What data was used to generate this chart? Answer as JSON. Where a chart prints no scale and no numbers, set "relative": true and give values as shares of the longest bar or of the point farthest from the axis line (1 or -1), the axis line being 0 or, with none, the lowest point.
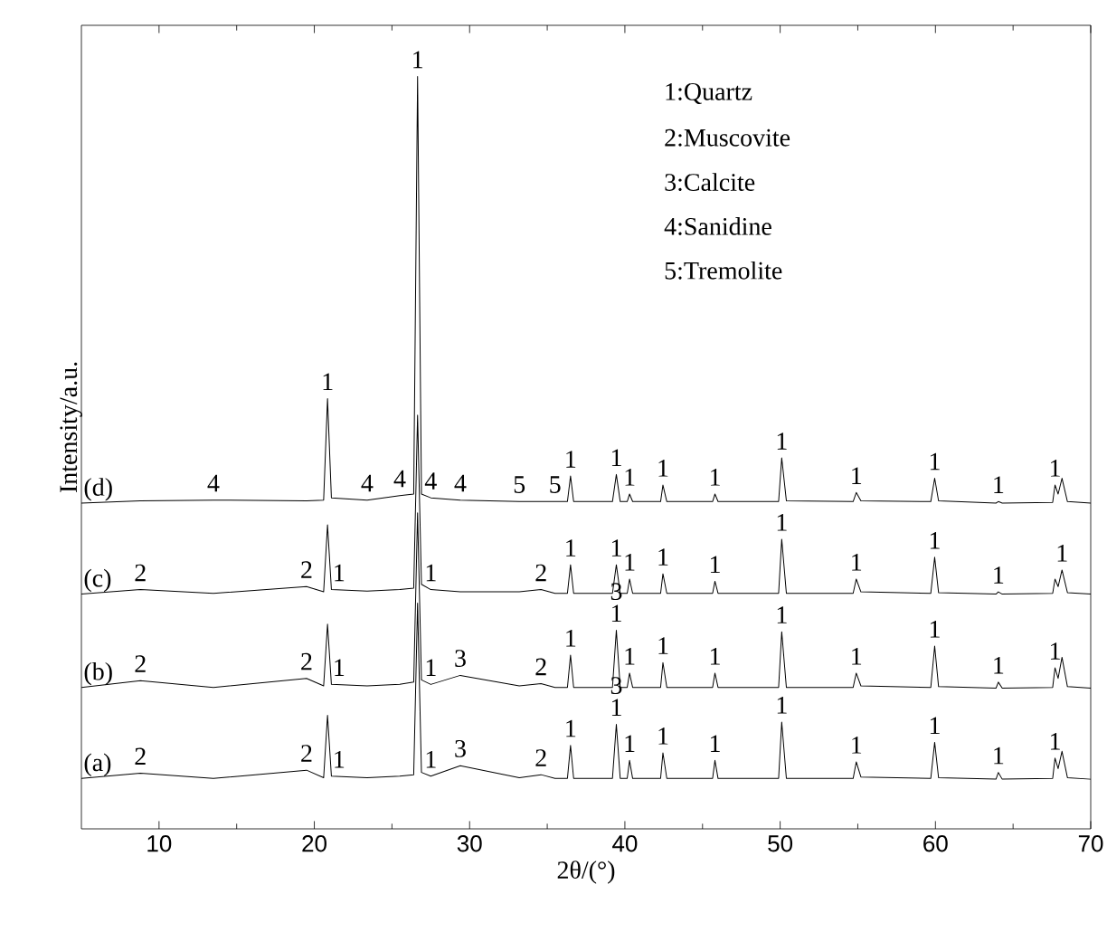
{
  "chart_data": {
    "type": "line",
    "relative": true,
    "xlabel": "2θ/(°)",
    "ylabel": "Intensity/a.u.",
    "xlim": [
      5,
      70
    ],
    "xticks": [
      10,
      20,
      30,
      40,
      50,
      60,
      70
    ],
    "tick_labels": "x",
    "marker": "none",
    "line_style": "solid",
    "x": [
      5,
      8.8,
      13.5,
      19.5,
      20.6,
      20.85,
      21.1,
      23.4,
      25.5,
      26.4,
      26.65,
      26.9,
      27.5,
      29.4,
      33.2,
      34.6,
      35.5,
      36.3,
      36.5,
      36.7,
      39.2,
      39.45,
      39.7,
      40.15,
      40.3,
      40.5,
      42.3,
      42.45,
      42.7,
      45.65,
      45.8,
      46.0,
      49.9,
      50.1,
      50.4,
      54.7,
      54.9,
      55.2,
      59.7,
      59.95,
      60.2,
      63.9,
      64.05,
      64.3,
      67.55,
      67.7,
      67.9,
      68.15,
      68.5,
      70
    ],
    "series": [
      {
        "name": "(a)",
        "color": "#000000",
        "values": [
          0.067,
          0.074,
          0.067,
          0.078,
          0.068,
          0.151,
          0.07,
          0.068,
          0.07,
          0.072,
          0.3,
          0.075,
          0.07,
          0.084,
          0.068,
          0.072,
          0.067,
          0.067,
          0.111,
          0.067,
          0.067,
          0.139,
          0.067,
          0.067,
          0.091,
          0.067,
          0.067,
          0.101,
          0.067,
          0.067,
          0.091,
          0.067,
          0.067,
          0.142,
          0.067,
          0.067,
          0.089,
          0.069,
          0.067,
          0.115,
          0.068,
          0.066,
          0.075,
          0.066,
          0.067,
          0.094,
          0.08,
          0.103,
          0.068,
          0.066
        ]
      },
      {
        "name": "(b)",
        "color": "#000000",
        "values": [
          0.188,
          0.197,
          0.188,
          0.2,
          0.19,
          0.272,
          0.192,
          0.19,
          0.192,
          0.195,
          0.42,
          0.198,
          0.192,
          0.204,
          0.19,
          0.193,
          0.188,
          0.188,
          0.231,
          0.188,
          0.188,
          0.264,
          0.188,
          0.188,
          0.207,
          0.188,
          0.188,
          0.221,
          0.188,
          0.188,
          0.207,
          0.188,
          0.188,
          0.262,
          0.188,
          0.188,
          0.207,
          0.19,
          0.188,
          0.243,
          0.189,
          0.187,
          0.195,
          0.187,
          0.188,
          0.214,
          0.2,
          0.228,
          0.189,
          0.187
        ]
      },
      {
        "name": "(c)",
        "color": "#000000",
        "values": [
          0.312,
          0.318,
          0.313,
          0.322,
          0.315,
          0.404,
          0.318,
          0.316,
          0.318,
          0.32,
          0.55,
          0.325,
          0.318,
          0.315,
          0.315,
          0.318,
          0.313,
          0.313,
          0.351,
          0.313,
          0.313,
          0.351,
          0.313,
          0.313,
          0.332,
          0.313,
          0.313,
          0.339,
          0.313,
          0.313,
          0.329,
          0.313,
          0.313,
          0.385,
          0.313,
          0.313,
          0.332,
          0.315,
          0.313,
          0.361,
          0.314,
          0.312,
          0.315,
          0.312,
          0.313,
          0.332,
          0.322,
          0.344,
          0.314,
          0.312
        ]
      },
      {
        "name": "(d)",
        "color": "#000000",
        "values": [
          0.433,
          0.436,
          0.437,
          0.436,
          0.437,
          0.572,
          0.44,
          0.437,
          0.443,
          0.445,
          1.0,
          0.445,
          0.44,
          0.437,
          0.435,
          0.435,
          0.435,
          0.435,
          0.469,
          0.435,
          0.435,
          0.471,
          0.435,
          0.435,
          0.445,
          0.435,
          0.435,
          0.457,
          0.435,
          0.435,
          0.445,
          0.435,
          0.435,
          0.493,
          0.436,
          0.435,
          0.447,
          0.436,
          0.435,
          0.466,
          0.436,
          0.433,
          0.435,
          0.433,
          0.434,
          0.457,
          0.445,
          0.466,
          0.435,
          0.433
        ]
      }
    ],
    "annotations": [
      "1:Quartz",
      "2:Muscovite",
      "3:Calcite",
      "4:Sanidine",
      "5:Tremolite",
      {
        "text": "4",
        "x": 13.5,
        "y": 0.437
      },
      {
        "text": "1",
        "x": 20.85,
        "y": 0.572
      },
      {
        "text": "4",
        "x": 23.4,
        "y": 0.437
      },
      {
        "text": "4",
        "x": 25.5,
        "y": 0.443
      },
      {
        "text": "1",
        "x": 26.65,
        "y": 1.0
      },
      {
        "text": "4",
        "x": 27.5,
        "y": 0.44
      },
      {
        "text": "4",
        "x": 29.4,
        "y": 0.437
      },
      {
        "text": "5",
        "x": 33.2,
        "y": 0.435
      },
      {
        "text": "5",
        "x": 35.5,
        "y": 0.435
      },
      {
        "text": "1",
        "x": 36.5,
        "y": 0.469
      },
      {
        "text": "1",
        "x": 39.45,
        "y": 0.471
      },
      {
        "text": "1",
        "x": 40.3,
        "y": 0.445
      },
      {
        "text": "1",
        "x": 42.45,
        "y": 0.457
      },
      {
        "text": "1",
        "x": 45.8,
        "y": 0.445
      },
      {
        "text": "1",
        "x": 50.1,
        "y": 0.493
      },
      {
        "text": "1",
        "x": 54.9,
        "y": 0.447
      },
      {
        "text": "1",
        "x": 59.95,
        "y": 0.466
      },
      {
        "text": "1",
        "x": 64.05,
        "y": 0.435
      },
      {
        "text": "1",
        "x": 67.7,
        "y": 0.457
      },
      {
        "text": "2",
        "x": 8.8,
        "y": 0.318
      },
      {
        "text": "2",
        "x": 19.5,
        "y": 0.322
      },
      {
        "text": "1",
        "x": 21.1,
        "y": 0.318
      },
      {
        "text": "1",
        "x": 27.5,
        "y": 0.318
      },
      {
        "text": "2",
        "x": 34.6,
        "y": 0.318
      },
      {
        "text": "1",
        "x": 36.5,
        "y": 0.351
      },
      {
        "text": "1",
        "x": 39.45,
        "y": 0.351
      },
      {
        "text": "1",
        "x": 40.3,
        "y": 0.332
      },
      {
        "text": "1",
        "x": 42.45,
        "y": 0.339
      },
      {
        "text": "1",
        "x": 45.8,
        "y": 0.329
      },
      {
        "text": "1",
        "x": 50.1,
        "y": 0.385
      },
      {
        "text": "1",
        "x": 54.9,
        "y": 0.332
      },
      {
        "text": "1",
        "x": 59.95,
        "y": 0.361
      },
      {
        "text": "1",
        "x": 64.05,
        "y": 0.315
      },
      {
        "text": "1",
        "x": 68.15,
        "y": 0.344
      },
      {
        "text": "2",
        "x": 8.8,
        "y": 0.197
      },
      {
        "text": "2",
        "x": 19.5,
        "y": 0.2
      },
      {
        "text": "1",
        "x": 21.1,
        "y": 0.192
      },
      {
        "text": "1",
        "x": 27.5,
        "y": 0.192
      },
      {
        "text": "3",
        "x": 29.4,
        "y": 0.204
      },
      {
        "text": "2",
        "x": 34.6,
        "y": 0.193
      },
      {
        "text": "1",
        "x": 36.5,
        "y": 0.231
      },
      {
        "text": "1",
        "x": 39.45,
        "y": 0.264
      },
      {
        "text": "3",
        "x": 39.45,
        "y": 0.264
      },
      {
        "text": "1",
        "x": 40.3,
        "y": 0.207
      },
      {
        "text": "1",
        "x": 42.45,
        "y": 0.221
      },
      {
        "text": "1",
        "x": 45.8,
        "y": 0.207
      },
      {
        "text": "1",
        "x": 50.1,
        "y": 0.262
      },
      {
        "text": "1",
        "x": 54.9,
        "y": 0.207
      },
      {
        "text": "1",
        "x": 59.95,
        "y": 0.243
      },
      {
        "text": "1",
        "x": 64.05,
        "y": 0.195
      },
      {
        "text": "1",
        "x": 67.7,
        "y": 0.214
      },
      {
        "text": "2",
        "x": 8.8,
        "y": 0.074
      },
      {
        "text": "2",
        "x": 19.5,
        "y": 0.078
      },
      {
        "text": "1",
        "x": 21.1,
        "y": 0.07
      },
      {
        "text": "1",
        "x": 27.5,
        "y": 0.07
      },
      {
        "text": "3",
        "x": 29.4,
        "y": 0.084
      },
      {
        "text": "2",
        "x": 34.6,
        "y": 0.072
      },
      {
        "text": "1",
        "x": 36.5,
        "y": 0.111
      },
      {
        "text": "1",
        "x": 39.45,
        "y": 0.139
      },
      {
        "text": "3",
        "x": 39.45,
        "y": 0.139
      },
      {
        "text": "1",
        "x": 40.3,
        "y": 0.091
      },
      {
        "text": "1",
        "x": 42.45,
        "y": 0.101
      },
      {
        "text": "1",
        "x": 45.8,
        "y": 0.091
      },
      {
        "text": "1",
        "x": 50.1,
        "y": 0.142
      },
      {
        "text": "1",
        "x": 54.9,
        "y": 0.089
      },
      {
        "text": "1",
        "x": 59.95,
        "y": 0.115
      },
      {
        "text": "1",
        "x": 64.05,
        "y": 0.075
      },
      {
        "text": "1",
        "x": 67.7,
        "y": 0.094
      }
    ]
  }
}
